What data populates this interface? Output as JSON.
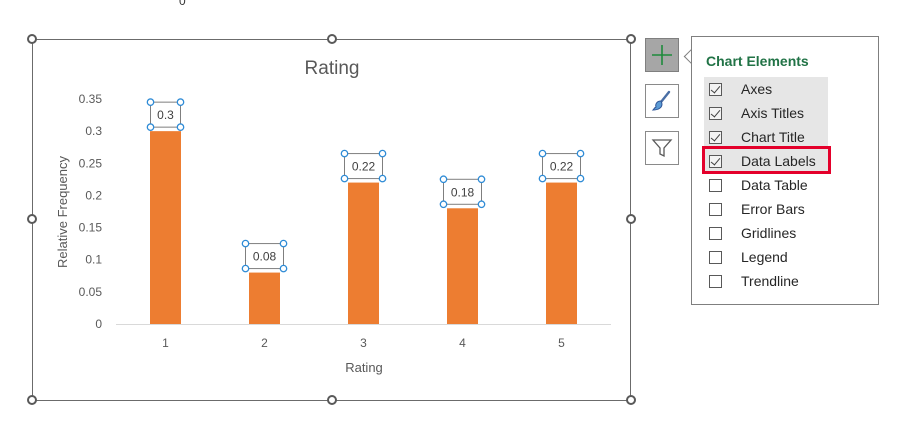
{
  "stray_mark": "0",
  "chart_data": {
    "type": "bar",
    "title": "Rating",
    "xlabel": "Rating",
    "ylabel": "Relative Frequency",
    "categories": [
      "1",
      "2",
      "3",
      "4",
      "5"
    ],
    "values": [
      0.3,
      0.08,
      0.22,
      0.18,
      0.22
    ],
    "data_labels": [
      "0.3",
      "0.08",
      "0.22",
      "0.18",
      "0.22"
    ],
    "ylim": [
      0,
      0.35
    ],
    "yticks": [
      "0",
      "0.05",
      "0.1",
      "0.15",
      "0.2",
      "0.25",
      "0.3",
      "0.35"
    ],
    "grid": false,
    "legend": "none",
    "bar_color": "#ED7D31"
  },
  "side_buttons": {
    "add": "plus-icon",
    "style": "brush-icon",
    "filter": "funnel-icon"
  },
  "panel": {
    "title": "Chart Elements",
    "title_color": "#217346",
    "items": [
      {
        "label": "Axes",
        "checked": true
      },
      {
        "label": "Axis Titles",
        "checked": true
      },
      {
        "label": "Chart Title",
        "checked": true
      },
      {
        "label": "Data Labels",
        "checked": true
      },
      {
        "label": "Data Table",
        "checked": false
      },
      {
        "label": "Error Bars",
        "checked": false
      },
      {
        "label": "Gridlines",
        "checked": false
      },
      {
        "label": "Legend",
        "checked": false
      },
      {
        "label": "Trendline",
        "checked": false
      }
    ],
    "highlight_color": "#E4002B"
  }
}
